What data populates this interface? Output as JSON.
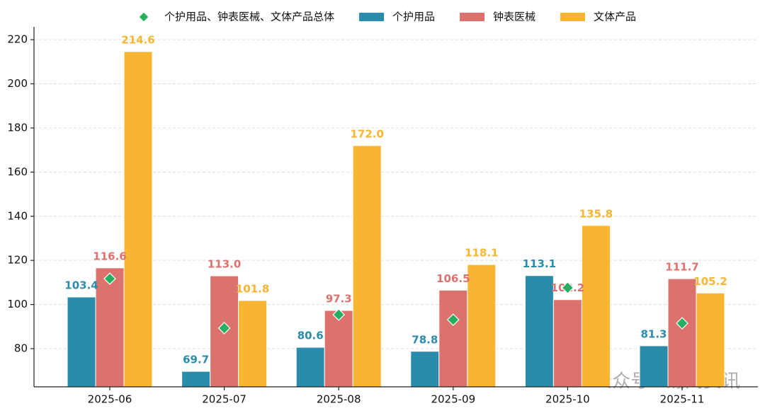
{
  "chart_data": {
    "type": "bar",
    "categories": [
      "2025-06",
      "2025-07",
      "2025-08",
      "2025-09",
      "2025-10",
      "2025-11"
    ],
    "series": [
      {
        "name": "个护用品、钟表医械、文体产品总体",
        "type": "scatter",
        "marker": "diamond",
        "color": "#27ae60",
        "values": [
          111.7,
          89.3,
          95.4,
          93.1,
          107.6,
          91.5
        ]
      },
      {
        "name": "个护用品",
        "type": "bar",
        "color": "#2a8caa",
        "values": [
          103.4,
          69.7,
          80.6,
          78.8,
          113.1,
          81.3
        ],
        "value_labels": [
          "103.4",
          "69.7",
          "80.6",
          "78.8",
          "113.1",
          "81.3"
        ]
      },
      {
        "name": "钟表医械",
        "type": "bar",
        "color": "#dc726d",
        "values": [
          116.6,
          113,
          97.3,
          106.5,
          102.2,
          111.7
        ],
        "value_labels": [
          "116.6",
          "113.0",
          "97.3",
          "106.5",
          "102.2",
          "111.7"
        ]
      },
      {
        "name": "文体产品",
        "type": "bar",
        "color": "#f8b531",
        "values": [
          214.6,
          101.8,
          172,
          118.1,
          135.8,
          105.2
        ],
        "value_labels": [
          "214.6",
          "101.8",
          "172.0",
          "118.1",
          "135.8",
          "105.2"
        ]
      }
    ],
    "ylim": [
      62.7,
      225.8
    ],
    "yticks": [
      80,
      100,
      120,
      140,
      160,
      180,
      200,
      220
    ],
    "grid": true,
    "legend": "top",
    "watermark": "公众号 · 瀚闻资讯"
  }
}
